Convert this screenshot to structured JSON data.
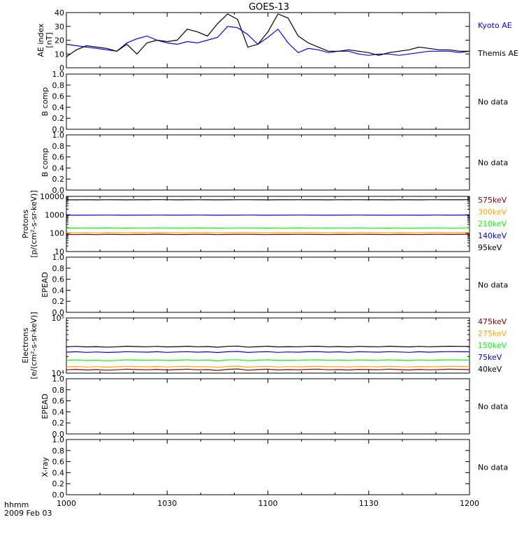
{
  "title": "GOES-13",
  "x_axis": {
    "ticks": [
      "1000",
      "1030",
      "1100",
      "1130",
      "1200"
    ],
    "corner_line1": "hhmm",
    "corner_line2": "2009 Feb 03"
  },
  "colors": {
    "black": "#000000",
    "blue": "#0000ff",
    "green": "#00ff00",
    "orange": "#ffa500",
    "darkred": "#8b0000"
  },
  "chart_data": [
    {
      "type": "line",
      "ylabel": "AE index",
      "yunit": "[nT]",
      "ylim": [
        0,
        40
      ],
      "yticks": [
        "0",
        "10",
        "20",
        "30",
        "40"
      ],
      "x_range": [
        "1000",
        "1200"
      ],
      "series": [
        {
          "name": "Kyoto AE",
          "color": "#0000ff",
          "x": [
            0,
            3,
            6,
            9,
            12,
            15,
            18,
            21,
            24,
            27,
            30,
            33,
            36,
            39,
            42,
            45,
            48,
            51,
            54,
            57,
            60,
            63,
            66,
            69,
            72,
            75,
            78,
            81,
            84,
            87,
            90,
            93,
            96,
            99,
            102,
            105,
            108,
            111,
            114,
            117,
            120
          ],
          "values": [
            17,
            16,
            15,
            14,
            13,
            12,
            18,
            21,
            23,
            20,
            18,
            17,
            19,
            18,
            20,
            22,
            30,
            29,
            24,
            17,
            22,
            28,
            18,
            11,
            14,
            13,
            11,
            12,
            12,
            10,
            9,
            10,
            10,
            9,
            10,
            11,
            12,
            12,
            12,
            11,
            12
          ]
        },
        {
          "name": "Themis AE",
          "color": "#000000",
          "x": [
            0,
            3,
            6,
            9,
            12,
            15,
            18,
            21,
            24,
            27,
            30,
            33,
            36,
            39,
            42,
            45,
            48,
            51,
            54,
            57,
            60,
            63,
            66,
            69,
            72,
            75,
            78,
            81,
            84,
            87,
            90,
            93,
            96,
            99,
            102,
            105,
            108,
            111,
            114,
            117,
            120
          ],
          "values": [
            8,
            13,
            16,
            15,
            14,
            12,
            17,
            10,
            18,
            20,
            19,
            20,
            28,
            26,
            23,
            32,
            39,
            35,
            15,
            17,
            26,
            39,
            36,
            23,
            18,
            15,
            12,
            12,
            13,
            12,
            11,
            9,
            11,
            12,
            13,
            15,
            14,
            13,
            13,
            12,
            12
          ]
        }
      ]
    },
    {
      "type": "line",
      "ylabel": "B comp",
      "ylim": [
        0,
        1
      ],
      "yticks": [
        "0.0",
        "0.2",
        "0.4",
        "0.6",
        "0.8",
        "1.0"
      ],
      "note": "No data"
    },
    {
      "type": "line",
      "ylabel": "B comp",
      "ylim": [
        0,
        1
      ],
      "yticks": [
        "0.0",
        "0.2",
        "0.4",
        "0.6",
        "0.8",
        "1.0"
      ],
      "note": "No data"
    },
    {
      "type": "line",
      "ylabel": "Protons",
      "yunit": "[p/(cm²-s-sr-keV)]",
      "yscale": "log",
      "ylim": [
        10,
        10000
      ],
      "yticks": [
        "10",
        "100",
        "1000",
        "10000"
      ],
      "series": [
        {
          "name": "575keV",
          "color": "#8b0000",
          "values": [
            85,
            84,
            86,
            83,
            87,
            85,
            84,
            86,
            85,
            88,
            86,
            84,
            85,
            87,
            86,
            84,
            85,
            86,
            87,
            85,
            84,
            86,
            85,
            87,
            86,
            85,
            84,
            86,
            85,
            87,
            86,
            85,
            84,
            86,
            85,
            84,
            86,
            87,
            85,
            86,
            88
          ]
        },
        {
          "name": "300keV",
          "color": "#ffa500",
          "values": [
            105,
            104,
            106,
            103,
            107,
            105,
            104,
            106,
            108,
            107,
            106,
            104,
            105,
            107,
            106,
            104,
            105,
            106,
            107,
            105,
            104,
            106,
            105,
            107,
            106,
            105,
            104,
            106,
            105,
            107,
            106,
            105,
            104,
            106,
            105,
            104,
            106,
            107,
            105,
            106,
            108
          ]
        },
        {
          "name": "210keV",
          "color": "#00ff00",
          "values": [
            190,
            188,
            192,
            189,
            193,
            190,
            189,
            191,
            190,
            194,
            192,
            189,
            190,
            193,
            191,
            189,
            190,
            192,
            193,
            190,
            189,
            191,
            190,
            193,
            191,
            190,
            189,
            192,
            190,
            193,
            191,
            190,
            189,
            191,
            190,
            189,
            192,
            193,
            190,
            191,
            195
          ]
        },
        {
          "name": "140keV",
          "color": "#0000ff",
          "values": [
            950,
            945,
            955,
            948,
            958,
            950,
            947,
            952,
            950,
            960,
            955,
            948,
            950,
            958,
            952,
            947,
            950,
            955,
            958,
            950,
            947,
            952,
            950,
            958,
            952,
            950,
            947,
            955,
            950,
            958,
            952,
            950,
            947,
            952,
            950,
            947,
            955,
            958,
            950,
            952,
            960
          ]
        },
        {
          "name": "95keV",
          "color": "#000000",
          "values": [
            6500,
            6450,
            6550,
            6480,
            6600,
            6500,
            6470,
            6520,
            6500,
            6650,
            6550,
            6480,
            6500,
            6600,
            6520,
            6470,
            6500,
            6550,
            6600,
            6500,
            6470,
            6520,
            6500,
            6600,
            6520,
            6500,
            6470,
            6550,
            6500,
            6600,
            6520,
            6500,
            6470,
            6520,
            6500,
            6470,
            6550,
            6600,
            6500,
            6520,
            6650
          ]
        }
      ]
    },
    {
      "type": "line",
      "ylabel": "EPEAD",
      "ylim": [
        0,
        1
      ],
      "yticks": [
        "0.0",
        "0.2",
        "0.4",
        "0.6",
        "0.8",
        "1.0"
      ],
      "note": "No data"
    },
    {
      "type": "line",
      "ylabel": "Electrons",
      "yunit": "[e/(cm²-s-sr-keV)]",
      "yscale": "log",
      "ylim": [
        10000,
        100000
      ],
      "yticks": [
        "10⁴",
        "10⁵"
      ],
      "series": [
        {
          "name": "475keV",
          "color": "#8b0000",
          "values": [
            11500,
            11700,
            11400,
            11600,
            11300,
            11500,
            11800,
            11600,
            11500,
            11700,
            11400,
            11600,
            11800,
            11500,
            11600,
            11200,
            11700,
            11900,
            11300,
            11600,
            11800,
            11400,
            11600,
            11500,
            11700,
            11800,
            11500,
            11600,
            11400,
            11700,
            11600,
            11500,
            11800,
            11600,
            11400,
            11700,
            11500,
            11600,
            11800,
            11700,
            11600
          ]
        },
        {
          "name": "275keV",
          "color": "#ffa500",
          "values": [
            13000,
            13200,
            12900,
            13100,
            12800,
            13000,
            13300,
            13100,
            13000,
            13200,
            12900,
            13100,
            13300,
            13000,
            13100,
            12700,
            13200,
            13400,
            12800,
            13100,
            13300,
            12900,
            13100,
            13000,
            13200,
            13300,
            13000,
            13100,
            12900,
            13200,
            13100,
            13000,
            13300,
            13100,
            12900,
            13200,
            13000,
            13100,
            13300,
            13200,
            13100
          ]
        },
        {
          "name": "150keV",
          "color": "#00ff00",
          "values": [
            17000,
            17300,
            16900,
            17100,
            16800,
            17000,
            17400,
            17200,
            17000,
            17300,
            16900,
            17100,
            17400,
            17000,
            17200,
            16700,
            17300,
            17500,
            16800,
            17100,
            17400,
            16900,
            17100,
            17000,
            17300,
            17400,
            17000,
            17200,
            16900,
            17300,
            17100,
            17000,
            17400,
            17100,
            16900,
            17300,
            17000,
            17200,
            17400,
            17300,
            17200
          ]
        },
        {
          "name": "75keV",
          "color": "#0000ff",
          "values": [
            24000,
            24400,
            23800,
            24200,
            23700,
            24000,
            24500,
            24200,
            24000,
            24400,
            23800,
            24200,
            24500,
            24000,
            24300,
            23600,
            24400,
            24700,
            23700,
            24200,
            24500,
            23800,
            24200,
            24000,
            24400,
            24500,
            24000,
            24300,
            23800,
            24400,
            24200,
            24000,
            24500,
            24200,
            23800,
            24400,
            24000,
            24300,
            24500,
            24400,
            24300
          ]
        },
        {
          "name": "40keV",
          "color": "#000000",
          "values": [
            30000,
            30500,
            29800,
            30200,
            29600,
            30000,
            30700,
            30300,
            30000,
            30500,
            29800,
            30200,
            30700,
            30000,
            30400,
            29500,
            30500,
            30900,
            29600,
            30200,
            30700,
            29800,
            30200,
            30000,
            30500,
            30700,
            30000,
            30400,
            29800,
            30500,
            30200,
            30000,
            30700,
            30300,
            29800,
            30500,
            30000,
            30400,
            30700,
            30500,
            30400
          ]
        }
      ]
    },
    {
      "type": "line",
      "ylabel": "EPEAD",
      "ylim": [
        0,
        1
      ],
      "yticks": [
        "0.0",
        "0.2",
        "0.4",
        "0.6",
        "0.8",
        "1.0"
      ],
      "note": "No data"
    },
    {
      "type": "line",
      "ylabel": "X-ray",
      "ylim": [
        0,
        1
      ],
      "yticks": [
        "0.0",
        "0.2",
        "0.4",
        "0.6",
        "0.8",
        "1.0"
      ],
      "note": "No data"
    }
  ]
}
